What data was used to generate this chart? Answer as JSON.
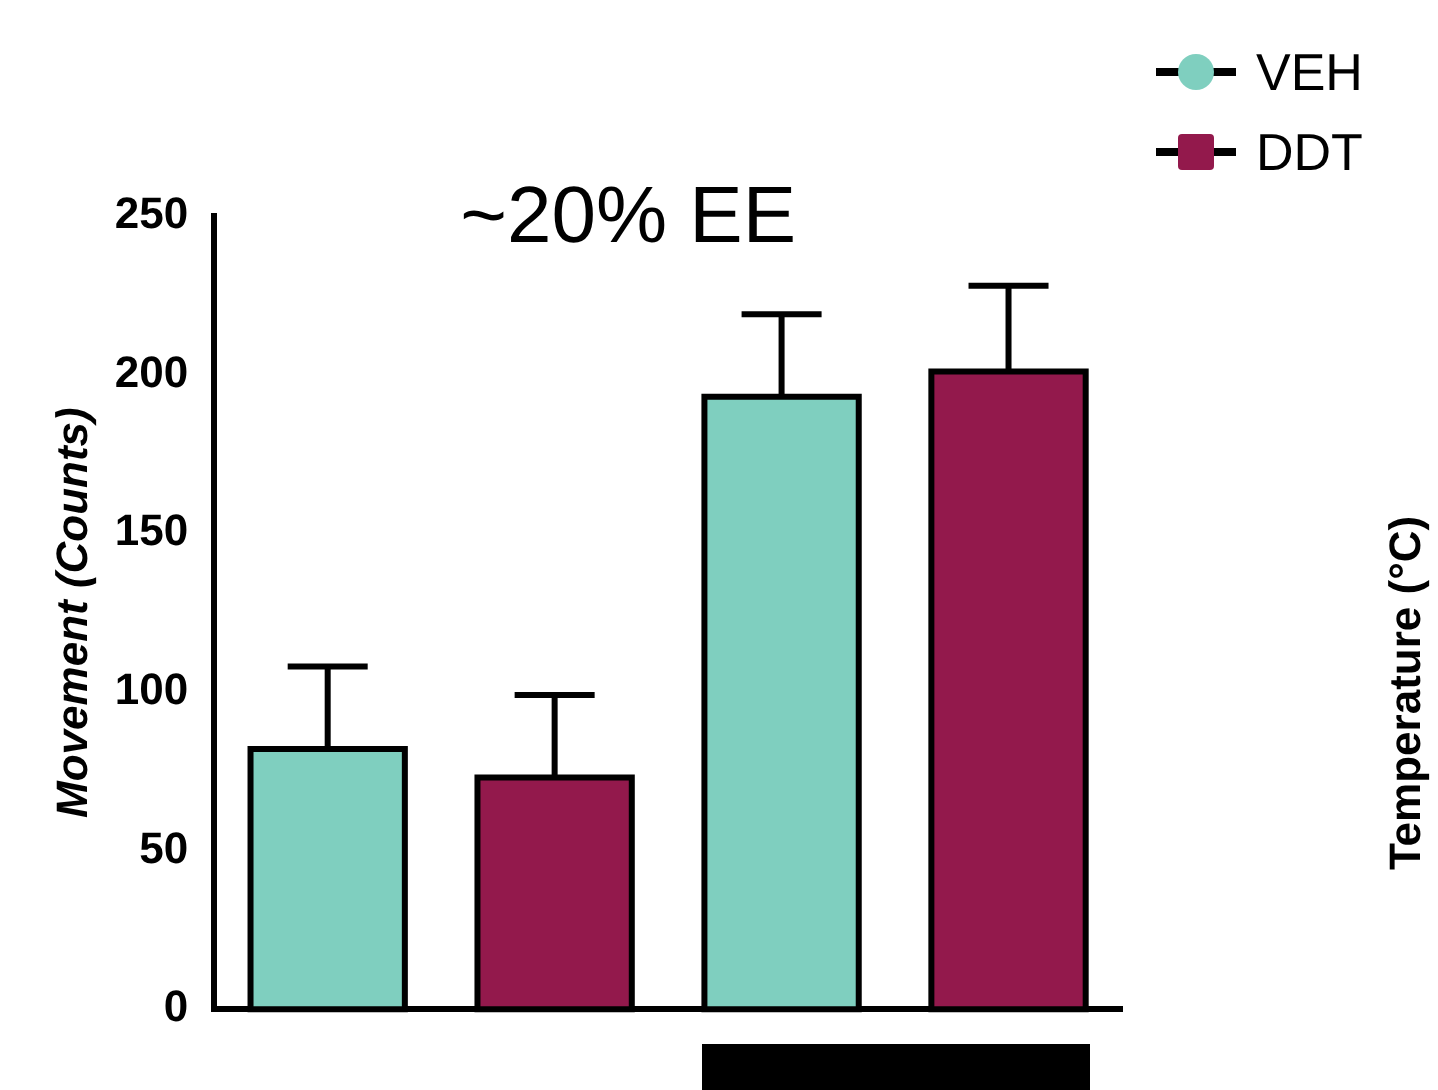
{
  "chart_data": {
    "type": "bar",
    "title": "~20% EE",
    "ylabel": "Movement (Counts)",
    "categories": [
      null,
      null,
      null,
      null
    ],
    "series": [
      {
        "name": "VEH",
        "color": "#7fcfbf",
        "values": [
          82,
          null,
          193,
          null
        ],
        "errors": [
          [
            82,
            108
          ],
          null,
          [
            193,
            219
          ],
          null
        ]
      },
      {
        "name": "DDT",
        "color": "#93194c",
        "values": [
          null,
          73,
          null,
          201
        ],
        "errors": [
          null,
          [
            73,
            99
          ],
          null,
          [
            201,
            228
          ]
        ]
      }
    ],
    "ylim": [
      0,
      250
    ],
    "yticks": [
      0,
      50,
      100,
      150,
      200,
      250
    ],
    "grid": false,
    "legend": "top right",
    "marker": "circle",
    "annotations": [
      "Temperature (°C)"
    ]
  }
}
